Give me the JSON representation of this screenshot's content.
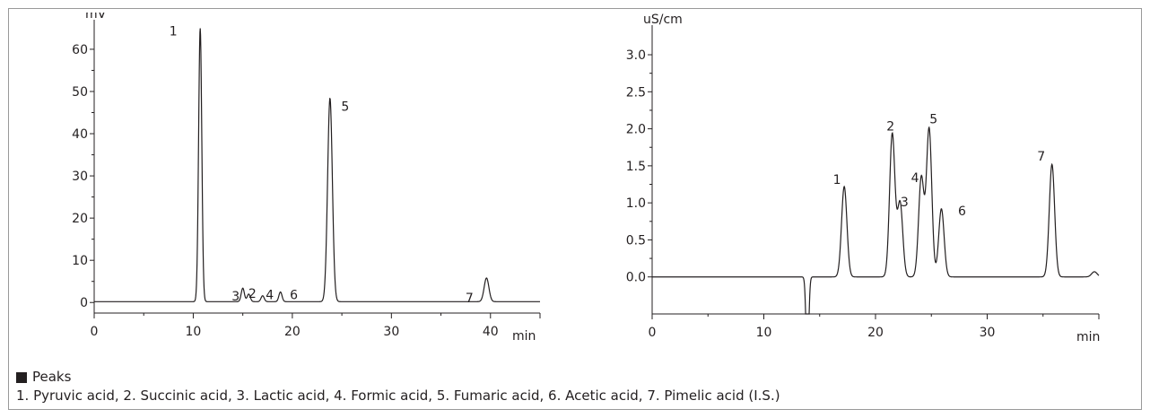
{
  "legend": {
    "heading": "Peaks",
    "text": "1. Pyruvic acid, 2. Succinic acid, 3. Lactic acid, 4. Formic acid, 5. Fumaric acid, 6. Acetic acid, 7. Pimelic acid (I.S.)"
  },
  "chart_data": [
    {
      "type": "line",
      "ylabel": "mV",
      "xlabel": "min",
      "xlim": [
        0,
        45
      ],
      "ylim": [
        -2.5,
        67
      ],
      "xticks": [
        0,
        10,
        20,
        30,
        40
      ],
      "yticks": [
        0,
        10,
        20,
        30,
        40,
        50,
        60
      ],
      "baseline": 0.2,
      "peaks": [
        {
          "label": "1",
          "rt": 10.7,
          "height": 64.8
        },
        {
          "label": "3",
          "rt": 15.0,
          "height": 3.2
        },
        {
          "label": "2",
          "rt": 15.6,
          "height": 1.8
        },
        {
          "label": "4",
          "rt": 17.0,
          "height": 1.4
        },
        {
          "label": "6",
          "rt": 18.8,
          "height": 2.3
        },
        {
          "label": "5",
          "rt": 23.8,
          "height": 48.2
        },
        {
          "label": "7",
          "rt": 39.6,
          "height": 5.6
        }
      ]
    },
    {
      "type": "line",
      "ylabel": "uS/cm",
      "xlabel": "min",
      "xlim": [
        0,
        40
      ],
      "ylim": [
        -0.5,
        3.4
      ],
      "xticks": [
        0,
        10,
        20,
        30
      ],
      "yticks": [
        0.0,
        0.5,
        1.0,
        1.5,
        2.0,
        2.5,
        3.0
      ],
      "yticklabels": [
        "0.0",
        "0.5",
        "1.0",
        "1.5",
        "2.0",
        "2.5",
        "3.0"
      ],
      "baseline": 0.0,
      "peaks": [
        {
          "label": "1",
          "rt": 17.2,
          "height": 1.22
        },
        {
          "label": "2",
          "rt": 21.5,
          "height": 1.93
        },
        {
          "label": "3",
          "rt": 22.2,
          "height": 1.0
        },
        {
          "label": "4",
          "rt": 24.1,
          "height": 1.34
        },
        {
          "label": "5",
          "rt": 24.8,
          "height": 2.0
        },
        {
          "label": "6",
          "rt": 25.9,
          "height": 0.92
        },
        {
          "label": "7",
          "rt": 35.8,
          "height": 1.52
        }
      ]
    }
  ]
}
